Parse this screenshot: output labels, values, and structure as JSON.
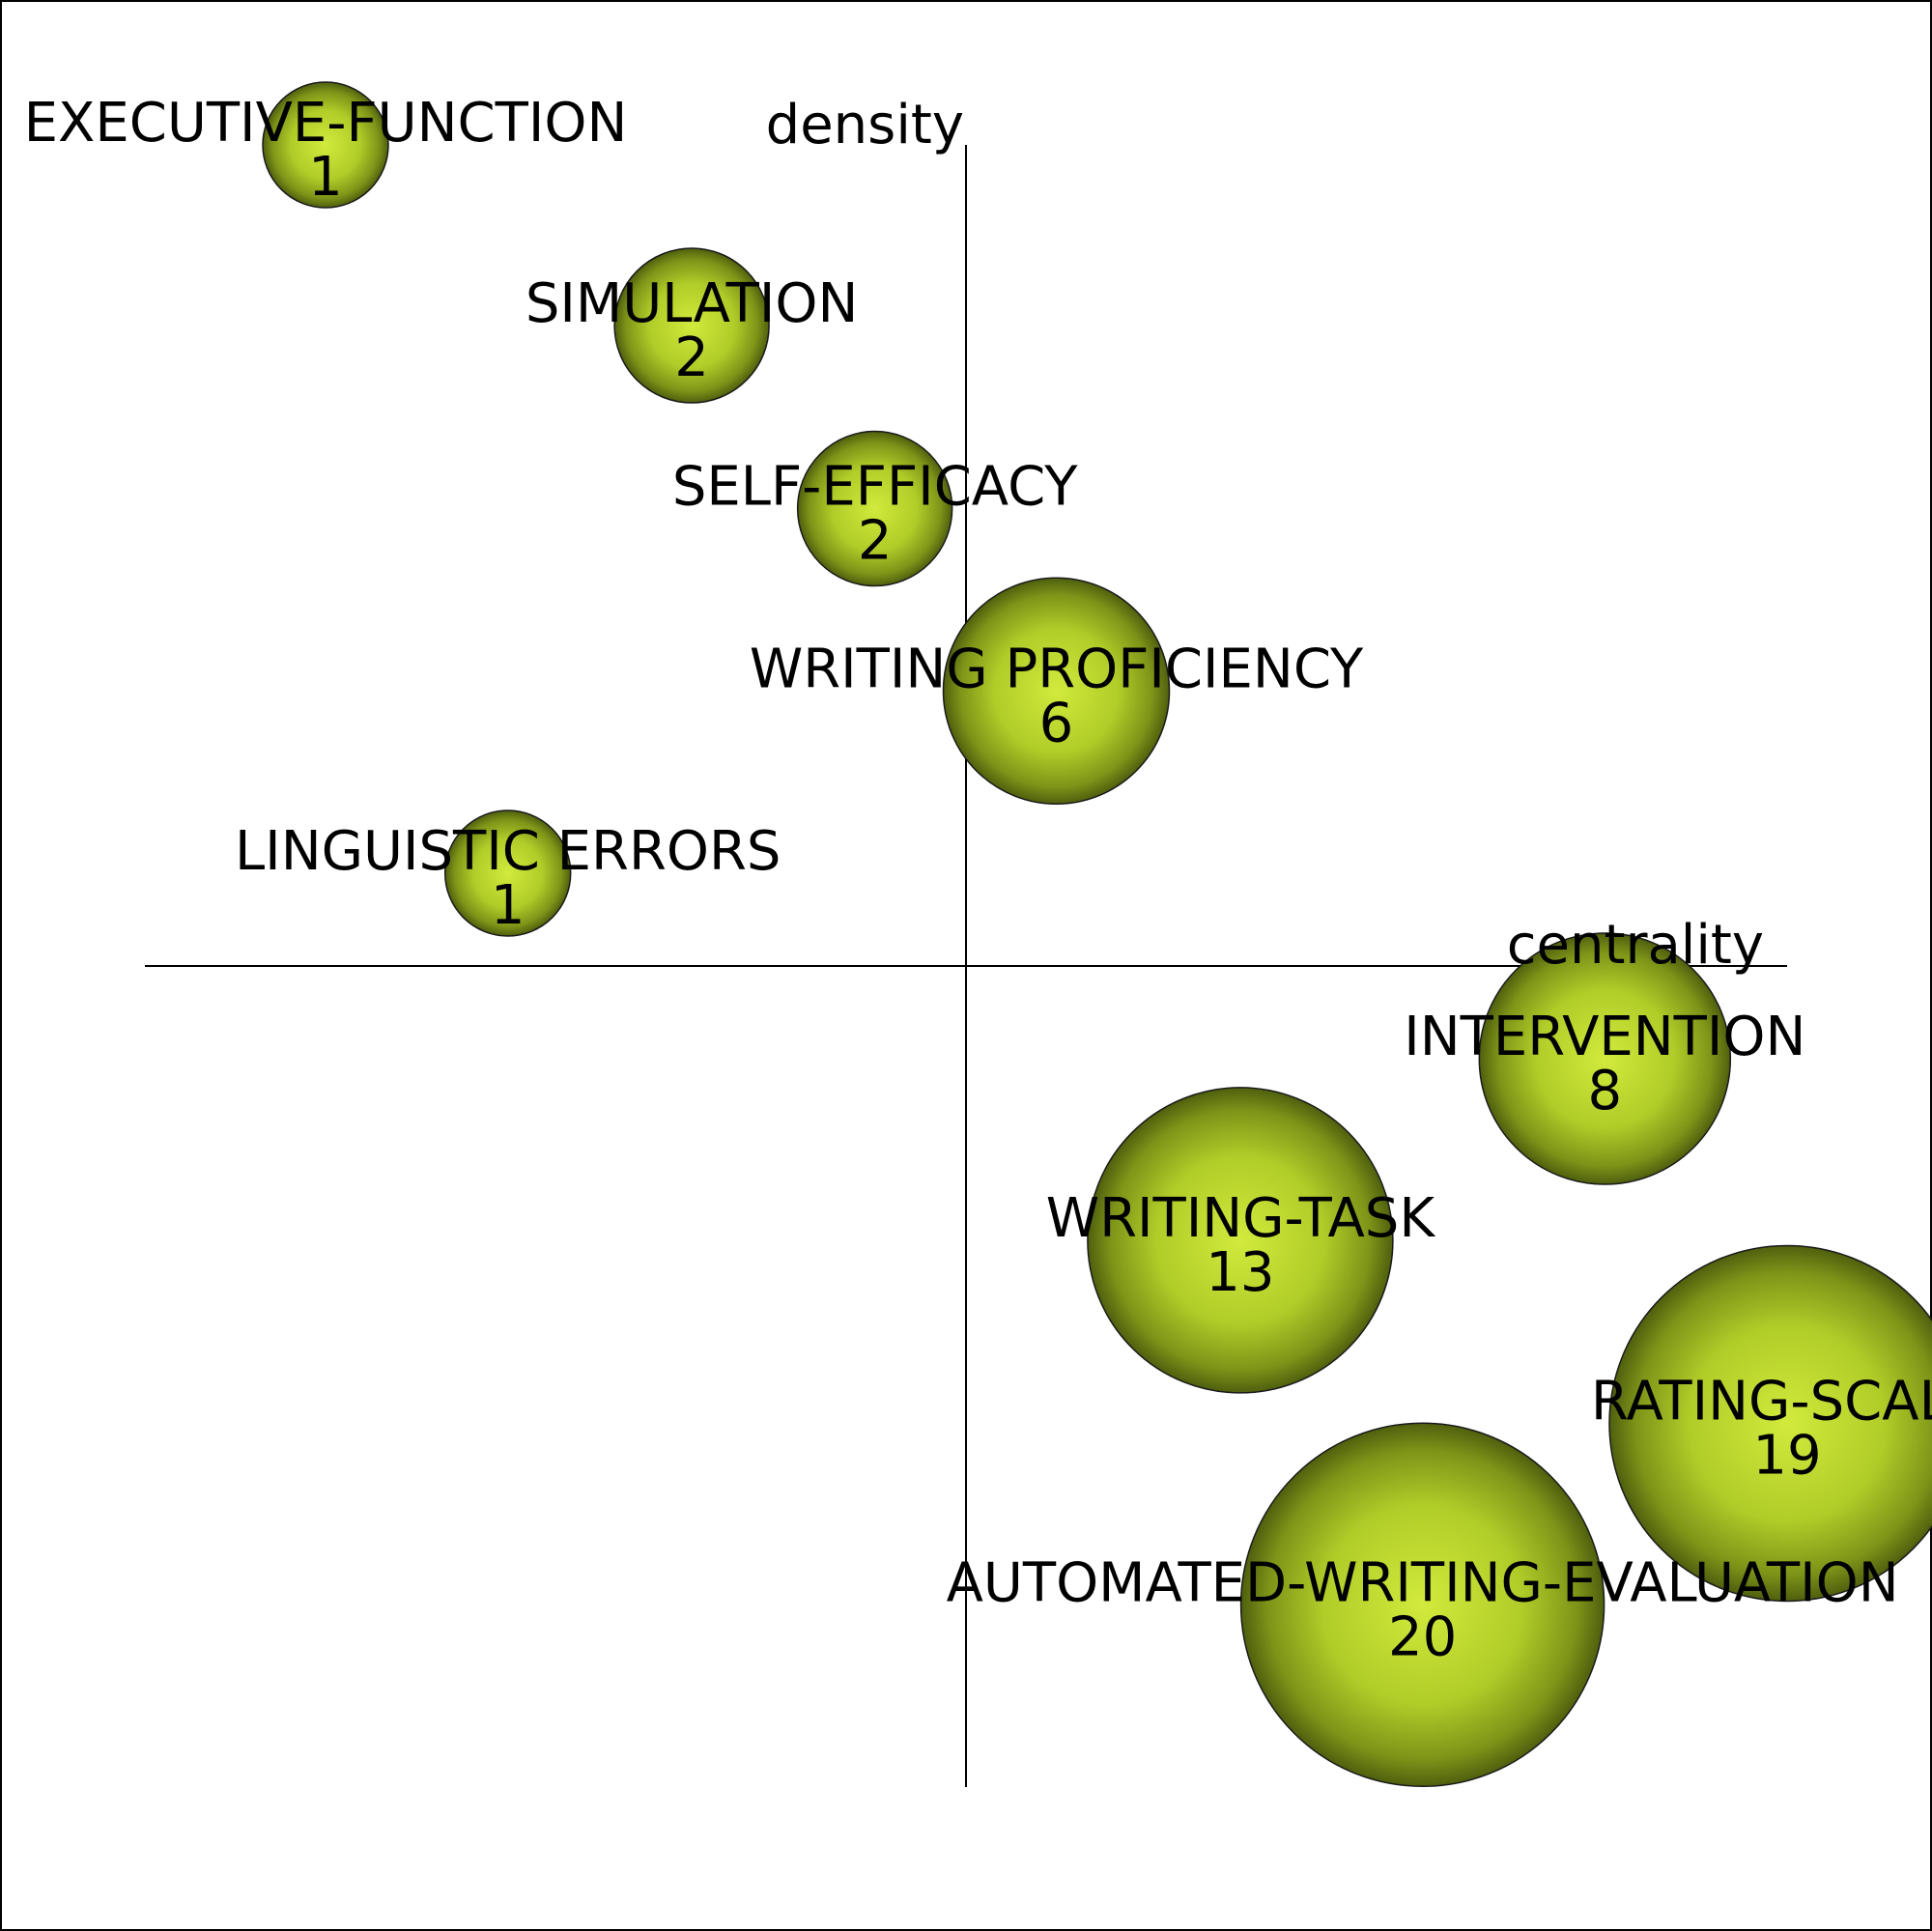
{
  "chart_data": {
    "type": "scatter",
    "title": "",
    "xlabel": "centrality",
    "ylabel": "density",
    "grid": false,
    "bubble_color": "#a8c61e",
    "points": [
      {
        "label": "EXECUTIVE-FUNCTION",
        "count": 1,
        "centrality": -0.78,
        "density": 1.0
      },
      {
        "label": "SIMULATION",
        "count": 2,
        "centrality": -0.334,
        "density": 0.78
      },
      {
        "label": "SELF-EFFICACY",
        "count": 2,
        "centrality": -0.111,
        "density": 0.557
      },
      {
        "label": "WRITING PROFICIENCY",
        "count": 6,
        "centrality": 0.11,
        "density": 0.335
      },
      {
        "label": "LINGUISTIC ERRORS",
        "count": 1,
        "centrality": -0.558,
        "density": 0.113
      },
      {
        "label": "INTERVENTION",
        "count": 8,
        "centrality": 0.778,
        "density": -0.113
      },
      {
        "label": "WRITING-TASK",
        "count": 13,
        "centrality": 0.334,
        "density": -0.334
      },
      {
        "label": "RATING-SCALE",
        "count": 19,
        "centrality": 1.0,
        "density": -0.557
      },
      {
        "label": "AUTOMATED-WRITING-EVALUATION",
        "count": 20,
        "centrality": 0.556,
        "density": -0.778
      }
    ]
  }
}
